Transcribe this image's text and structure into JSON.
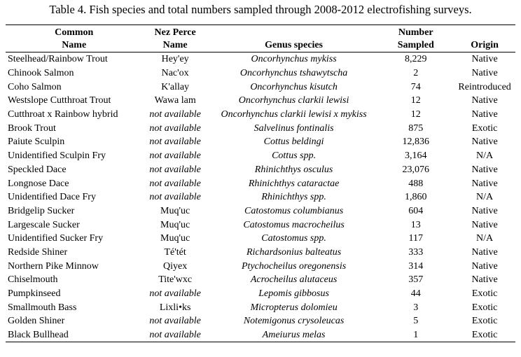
{
  "caption": "Table 4. Fish species and total numbers sampled through 2008-2012 electrofishing surveys.",
  "headers": {
    "common_line1": "Common",
    "common_line2": "Name",
    "nez_line1": "Nez Perce",
    "nez_line2": "Name",
    "genus": "Genus species",
    "number_line1": "Number",
    "number_line2": "Sampled",
    "origin": "Origin"
  },
  "rows": [
    {
      "common": "Steelhead/Rainbow Trout",
      "nez": "Hey'ey",
      "genus": "Oncorhynchus mykiss",
      "number": "8,229",
      "origin": "Native"
    },
    {
      "common": "Chinook Salmon",
      "nez": "Nac'ox",
      "genus": "Oncorhynchus tshawytscha",
      "number": "2",
      "origin": "Native"
    },
    {
      "common": "Coho Salmon",
      "nez": "K'allay",
      "genus": "Oncorhynchus kisutch",
      "number": "74",
      "origin": "Reintroduced"
    },
    {
      "common": "Westslope Cutthroat Trout",
      "nez": "Wawa lam",
      "genus": "Oncorhynchus clarkii lewisi",
      "number": "12",
      "origin": "Native"
    },
    {
      "common": "Cutthroat x Rainbow hybrid",
      "nez": "not available",
      "genus": "Oncorhynchus clarkii lewisi x mykiss",
      "number": "12",
      "origin": "Native"
    },
    {
      "common": "Brook Trout",
      "nez": "not available",
      "genus": "Salvelinus fontinalis",
      "number": "875",
      "origin": "Exotic"
    },
    {
      "common": "Paiute Sculpin",
      "nez": "not available",
      "genus": "Cottus beldingi",
      "number": "12,836",
      "origin": "Native"
    },
    {
      "common": "Unidentified Sculpin Fry",
      "nez": "not available",
      "genus": "Cottus spp.",
      "number": "3,164",
      "origin": "N/A"
    },
    {
      "common": "Speckled Dace",
      "nez": "not available",
      "genus": "Rhinichthys osculus",
      "number": "23,076",
      "origin": "Native"
    },
    {
      "common": "Longnose Dace",
      "nez": "not available",
      "genus": "Rhinichthys cataractae",
      "number": "488",
      "origin": "Native"
    },
    {
      "common": "Unidentified Dace Fry",
      "nez": "not available",
      "genus": "Rhinichthys spp.",
      "number": "1,860",
      "origin": "N/A"
    },
    {
      "common": "Bridgelip Sucker",
      "nez": "Muq'uc",
      "genus": "Catostomus columbianus",
      "number": "604",
      "origin": "Native"
    },
    {
      "common": "Largescale Sucker",
      "nez": "Muq'uc",
      "genus": "Catostomus macrocheilus",
      "number": "13",
      "origin": "Native"
    },
    {
      "common": "Unidentified Sucker Fry",
      "nez": "Muq'uc",
      "genus": "Catostomus spp.",
      "number": "117",
      "origin": "N/A"
    },
    {
      "common": "Redside Shiner",
      "nez": "Té'tét",
      "genus": "Richardsonius balteatus",
      "number": "333",
      "origin": "Native"
    },
    {
      "common": "Northern Pike Minnow",
      "nez": "Qiyex",
      "genus": "Ptychocheilus oregonensis",
      "number": "314",
      "origin": "Native"
    },
    {
      "common": "Chiselmouth",
      "nez": "Tite'wxc",
      "genus": "Acrocheilus alutaceus",
      "number": "357",
      "origin": "Native"
    },
    {
      "common": "Pumpkinseed",
      "nez": "not available",
      "genus": "Lepomis gibbosus",
      "number": "44",
      "origin": "Exotic"
    },
    {
      "common": "Smallmouth Bass",
      "nez": "Lixli•ks",
      "genus": "Micropterus dolomieu",
      "number": "3",
      "origin": "Exotic"
    },
    {
      "common": "Golden Shiner",
      "nez": "not available",
      "genus": "Notemigonus crysoleucas",
      "number": "5",
      "origin": "Exotic"
    },
    {
      "common": "Black Bullhead",
      "nez": "not available",
      "genus": "Ameiurus melas",
      "number": "1",
      "origin": "Exotic"
    }
  ]
}
